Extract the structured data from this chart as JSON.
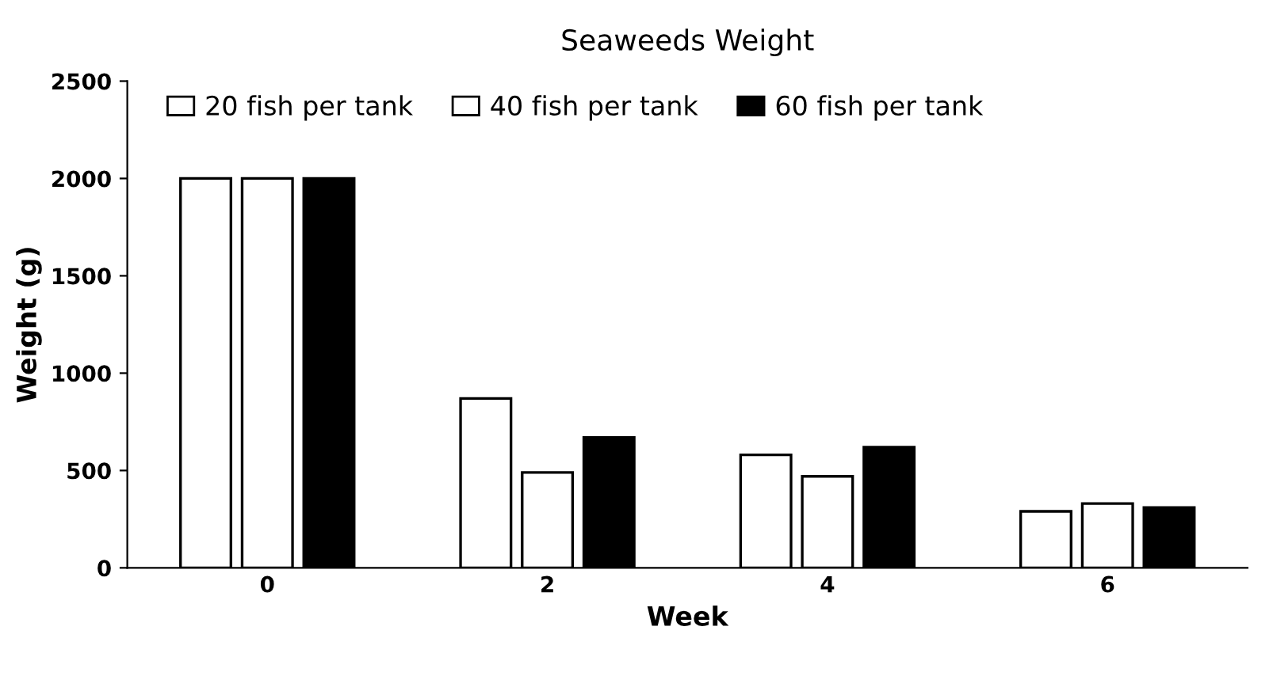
{
  "chart_data": {
    "type": "bar",
    "title": "Seaweeds Weight",
    "xlabel": "Week",
    "ylabel": "Weight (g)",
    "categories": [
      "0",
      "2",
      "4",
      "6"
    ],
    "series": [
      {
        "name": "20 fish per tank",
        "color": "#ffffff",
        "values": [
          2000,
          870,
          580,
          290
        ]
      },
      {
        "name": "40 fish per tank",
        "color": "#ffffff",
        "values": [
          2000,
          490,
          470,
          330
        ]
      },
      {
        "name": "60 fish per tank",
        "color": "#000000",
        "values": [
          2000,
          670,
          620,
          310
        ]
      }
    ],
    "ylim": [
      0,
      2500
    ],
    "yticks": [
      0,
      500,
      1000,
      1500,
      2000,
      2500
    ],
    "grid": false,
    "legend": "top"
  }
}
